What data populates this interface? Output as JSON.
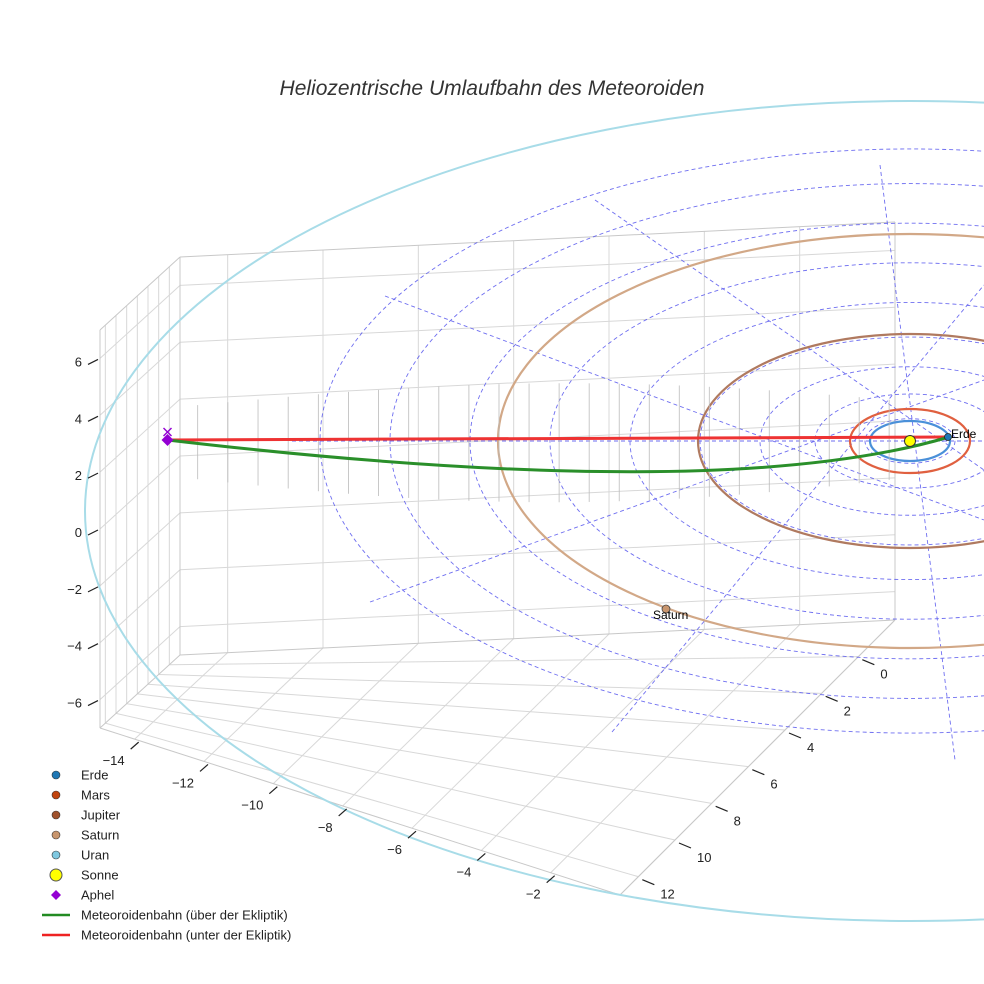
{
  "chart_data": {
    "type": "scatter3d",
    "title": "Heliozentrische Umlaufbahn des Meteoroiden",
    "axes": {
      "x": {
        "range": [
          -15,
          0
        ],
        "ticks": [
          -14,
          -12,
          -10,
          -8,
          -6,
          -4,
          -2
        ]
      },
      "y": {
        "range": [
          -2,
          13
        ],
        "ticks": [
          0,
          2,
          4,
          6,
          8,
          10,
          12
        ]
      },
      "z": {
        "range": [
          -7,
          7
        ],
        "ticks": [
          6,
          4,
          2,
          0,
          -2,
          -4,
          -6
        ]
      }
    },
    "grid": true,
    "legend_placement": "bottom-left",
    "legend": [
      {
        "name": "Erde",
        "marker": "circle",
        "color": "#1f77b4"
      },
      {
        "name": "Mars",
        "marker": "circle",
        "color": "#c1440e"
      },
      {
        "name": "Jupiter",
        "marker": "circle",
        "color": "#a0522d"
      },
      {
        "name": "Saturn",
        "marker": "circle",
        "color": "#c8956d"
      },
      {
        "name": "Uran",
        "marker": "circle",
        "color": "#7fc8e0"
      },
      {
        "name": "Sonne",
        "marker": "circle",
        "color": "#ffff00"
      },
      {
        "name": "Aphel",
        "marker": "diamond",
        "color": "#9400d3"
      },
      {
        "name": "Meteoroidenbahn (über der Ekliptik)",
        "marker": "line",
        "color": "#228b22"
      },
      {
        "name": "Meteoroidenbahn (unter der Ekliptik)",
        "marker": "line",
        "color": "#ee2222"
      }
    ],
    "point_labels": [
      {
        "name": "Erde",
        "text": "Erde"
      },
      {
        "name": "Saturn",
        "text": "Saturn"
      }
    ],
    "orbits": [
      {
        "name": "Erde",
        "radius_au": 1.0,
        "color": "#4a90d9"
      },
      {
        "name": "Mars",
        "radius_au": 1.52,
        "color": "#e06040"
      },
      {
        "name": "Jupiter",
        "radius_au": 5.2,
        "color": "#b07a60"
      },
      {
        "name": "Saturn",
        "radius_au": 9.54,
        "color": "#d2a887"
      },
      {
        "name": "Uran",
        "radius_au": 19.2,
        "color": "#a8dce8"
      }
    ],
    "aphel": {
      "x": -14.5,
      "y": 4.3,
      "z": 1.7
    }
  }
}
